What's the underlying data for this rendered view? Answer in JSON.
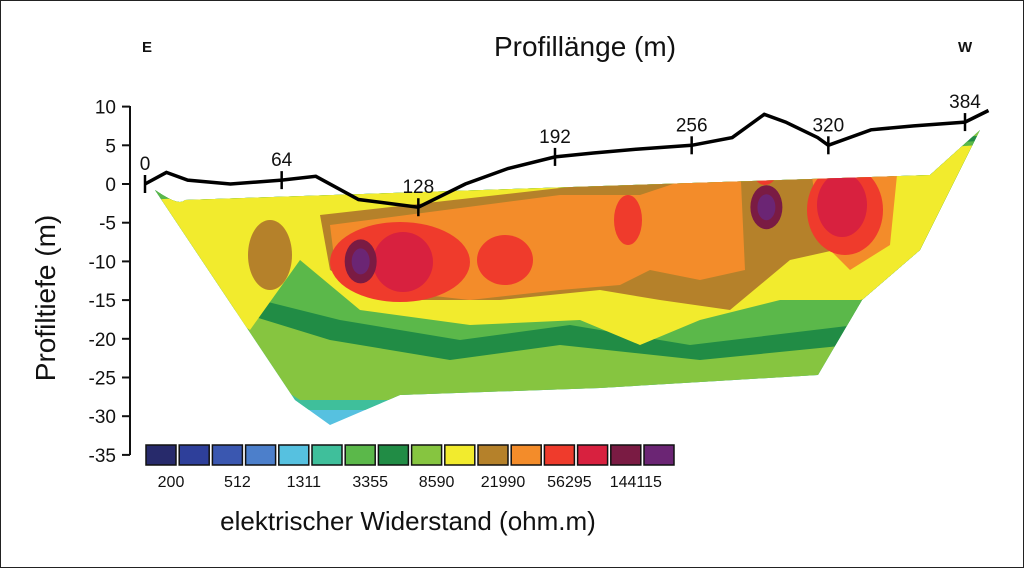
{
  "chart_data": {
    "type": "heatmap",
    "title": "Profillänge (m)",
    "xlabel": "Profillänge (m)",
    "ylabel": "Profiltiefe (m)",
    "direction_left": "E",
    "direction_right": "W",
    "x_ticks": [
      0,
      64,
      128,
      192,
      256,
      320,
      384
    ],
    "y_ticks": [
      10,
      5,
      0,
      -5,
      -10,
      -15,
      -20,
      -25,
      -30,
      -35
    ],
    "xlim": [
      0,
      384
    ],
    "ylim": [
      -35,
      10
    ],
    "surface_profile": {
      "x": [
        0,
        10,
        20,
        40,
        64,
        80,
        100,
        128,
        150,
        170,
        192,
        210,
        230,
        256,
        275,
        290,
        300,
        315,
        320,
        340,
        360,
        384,
        395
      ],
      "y": [
        0,
        1.5,
        0.5,
        0,
        0.5,
        1,
        -2,
        -3,
        0,
        2,
        3.5,
        4,
        4.5,
        5,
        6,
        9,
        8,
        6,
        5,
        7,
        7.5,
        8,
        9.5
      ]
    },
    "high_resistivity_zones": [
      {
        "x": 101,
        "y": -10,
        "value": 144115
      },
      {
        "x": 291,
        "y": -3,
        "value": 144115
      }
    ],
    "legend": {
      "title": "elektrischer Widerstand (ohm.m)",
      "labels": [
        "200",
        "512",
        "1311",
        "3355",
        "8590",
        "21990",
        "56295",
        "144115"
      ],
      "colors": [
        "#272a6b",
        "#2e3f9a",
        "#3a57b0",
        "#4c7fcb",
        "#56c1e0",
        "#3fbf9b",
        "#5bb84a",
        "#218c45",
        "#86c540",
        "#f2eb2d",
        "#b5812a",
        "#f38c2a",
        "#ef3b2c",
        "#d8213f",
        "#7a1b43",
        "#6b2574"
      ]
    }
  }
}
